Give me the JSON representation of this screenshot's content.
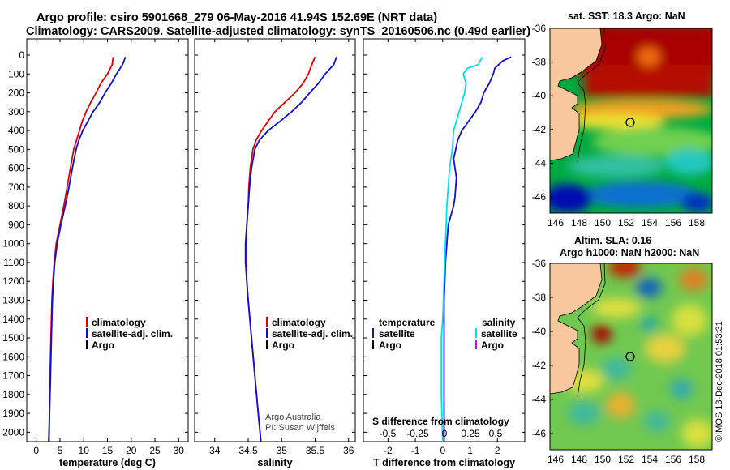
{
  "title": {
    "line1": "Argo profile: csiro 5901668_279 06-May-2016 41.94S 152.69E (NRT data)",
    "line2": "Climatology: CARS2009. Satellite-adjusted climatology: synTS_20160506.nc (0.49d earlier)"
  },
  "colors": {
    "red": "#e00000",
    "blue": "#1010d0",
    "cyan": "#00e0f0",
    "magenta": "#e000e0",
    "black": "#000000"
  },
  "depth_axis": {
    "range": [
      0,
      2050
    ],
    "ticks": [
      0,
      100,
      200,
      300,
      400,
      500,
      600,
      700,
      800,
      900,
      1000,
      1100,
      1200,
      1300,
      1400,
      1500,
      1600,
      1700,
      1800,
      1900,
      2000
    ]
  },
  "chart_data": [
    {
      "type": "line",
      "id": "temperature",
      "xlabel": "temperature (deg C)",
      "ylabel": "",
      "xlim": [
        -2,
        32
      ],
      "ylim": [
        2050,
        0
      ],
      "xticks": [
        0,
        5,
        10,
        15,
        20,
        25,
        30
      ],
      "legend": [
        "climatology",
        "satellite-adj. clim.",
        "Argo"
      ],
      "series": [
        {
          "name": "climatology",
          "color": "#e00000",
          "x": [
            16.2,
            16.0,
            15.0,
            13.6,
            12.6,
            11.5,
            10.5,
            9.7,
            9.1,
            8.5,
            7.9,
            7.2,
            6.5,
            5.8,
            5.0,
            4.2,
            3.8,
            3.5,
            3.3,
            3.1,
            2.9,
            2.8,
            2.6
          ],
          "y": [
            10,
            50,
            100,
            150,
            200,
            250,
            300,
            350,
            400,
            450,
            500,
            600,
            700,
            800,
            900,
            1000,
            1100,
            1200,
            1300,
            1500,
            1700,
            1900,
            2050
          ]
        },
        {
          "name": "satellite-adj. clim.",
          "color": "#1010d0",
          "x": [
            18.8,
            18.2,
            16.9,
            15.8,
            14.5,
            13.4,
            12.0,
            10.9,
            9.8,
            9.0,
            8.4,
            7.6,
            6.9,
            6.1,
            5.2,
            4.4,
            3.9,
            3.6,
            3.4,
            3.2,
            3.0,
            2.8,
            2.7
          ],
          "y": [
            10,
            50,
            100,
            150,
            200,
            250,
            300,
            350,
            400,
            450,
            500,
            600,
            700,
            800,
            900,
            1000,
            1100,
            1200,
            1300,
            1500,
            1700,
            1900,
            2050
          ]
        }
      ]
    },
    {
      "type": "line",
      "id": "salinity",
      "xlabel": "salinity",
      "ylabel": "",
      "xlim": [
        33.7,
        36.1
      ],
      "ylim": [
        2050,
        0
      ],
      "xticks": [
        34,
        34.5,
        35,
        35.5,
        36
      ],
      "legend": [
        "climatology",
        "satellite-adj. clim.",
        "Argo"
      ],
      "series": [
        {
          "name": "climatology",
          "color": "#e00000",
          "x": [
            35.5,
            35.45,
            35.4,
            35.32,
            35.2,
            35.05,
            34.9,
            34.8,
            34.7,
            34.62,
            34.57,
            34.53,
            34.51,
            34.5,
            34.48,
            34.47,
            34.47,
            34.48,
            34.5,
            34.55,
            34.6,
            34.65,
            34.69
          ],
          "y": [
            10,
            50,
            100,
            150,
            200,
            250,
            300,
            350,
            400,
            450,
            500,
            600,
            700,
            800,
            900,
            1000,
            1100,
            1200,
            1300,
            1500,
            1700,
            1900,
            2050
          ]
        },
        {
          "name": "satellite-adj. clim.",
          "color": "#1010d0",
          "x": [
            35.82,
            35.78,
            35.65,
            35.55,
            35.42,
            35.3,
            35.15,
            34.98,
            34.8,
            34.67,
            34.6,
            34.55,
            34.52,
            34.5,
            34.48,
            34.46,
            34.46,
            34.48,
            34.5,
            34.55,
            34.6,
            34.65,
            34.69
          ],
          "y": [
            10,
            50,
            100,
            150,
            200,
            250,
            300,
            350,
            400,
            450,
            500,
            600,
            700,
            800,
            900,
            1000,
            1100,
            1200,
            1300,
            1500,
            1700,
            1900,
            2050
          ]
        }
      ],
      "annotations": [
        "Argo Australia",
        "PI: Susan Wijffels"
      ]
    },
    {
      "type": "line",
      "id": "difference",
      "xlabel": "T difference from climatology",
      "ylabel": "",
      "xlim": [
        -2.9,
        3.0
      ],
      "ylim": [
        2050,
        0
      ],
      "xticks": [
        -2,
        -1,
        0,
        1,
        2
      ],
      "secondary_xlabel": "S difference from climatology",
      "secondary_xticks": [
        "-0.5",
        "-0.25",
        "0",
        "0.25",
        "0.5"
      ],
      "legend": {
        "temperature": [
          "satellite",
          "Argo"
        ],
        "salinity": [
          "satellite",
          "Argo"
        ]
      },
      "series": [
        {
          "name": "temperature satellite",
          "color": "#1010d0",
          "x": [
            2.5,
            2.2,
            1.9,
            1.85,
            1.7,
            1.5,
            1.4,
            1.2,
            0.95,
            0.7,
            0.55,
            0.4,
            0.5,
            0.45,
            0.4,
            0.2,
            0.1,
            0.05,
            0.05,
            0.05,
            0.05,
            0.05
          ],
          "y": [
            10,
            30,
            70,
            100,
            150,
            200,
            250,
            300,
            350,
            400,
            450,
            550,
            650,
            750,
            800,
            900,
            1100,
            1300,
            1500,
            1700,
            1900,
            2050
          ]
        },
        {
          "name": "salinity satellite",
          "color": "#00e0f0",
          "x": [
            1.45,
            1.3,
            0.9,
            0.75,
            0.85,
            0.8,
            0.6,
            0.4,
            0.35,
            0.25,
            0.2,
            0.15,
            0.1,
            0.05,
            0.0,
            -0.05,
            -0.05,
            -0.05,
            -0.05,
            0.0
          ],
          "y": [
            10,
            50,
            70,
            100,
            150,
            200,
            300,
            400,
            500,
            600,
            700,
            800,
            1000,
            1200,
            1400,
            1500,
            1600,
            1700,
            1800,
            2050
          ]
        }
      ]
    }
  ],
  "maps": {
    "sst": {
      "title": "sat. SST: 18.3 Argo: NaN",
      "lat_ticks": [
        "-36",
        "-38",
        "-40",
        "-42",
        "-44",
        "-46"
      ],
      "lon_ticks": [
        "146",
        "148",
        "150",
        "152",
        "154",
        "156",
        "158"
      ]
    },
    "sla": {
      "title1": "Altim. SLA: 0.16",
      "title2": "Argo h1000: NaN h2000: NaN",
      "lat_ticks": [
        "-36",
        "-38",
        "-40",
        "-42",
        "-44",
        "-46"
      ],
      "lon_ticks": [
        "146",
        "148",
        "150",
        "152",
        "154",
        "156",
        "158"
      ]
    }
  },
  "footer_credit": "©IMOS 13-Dec-2018 01:53:31"
}
